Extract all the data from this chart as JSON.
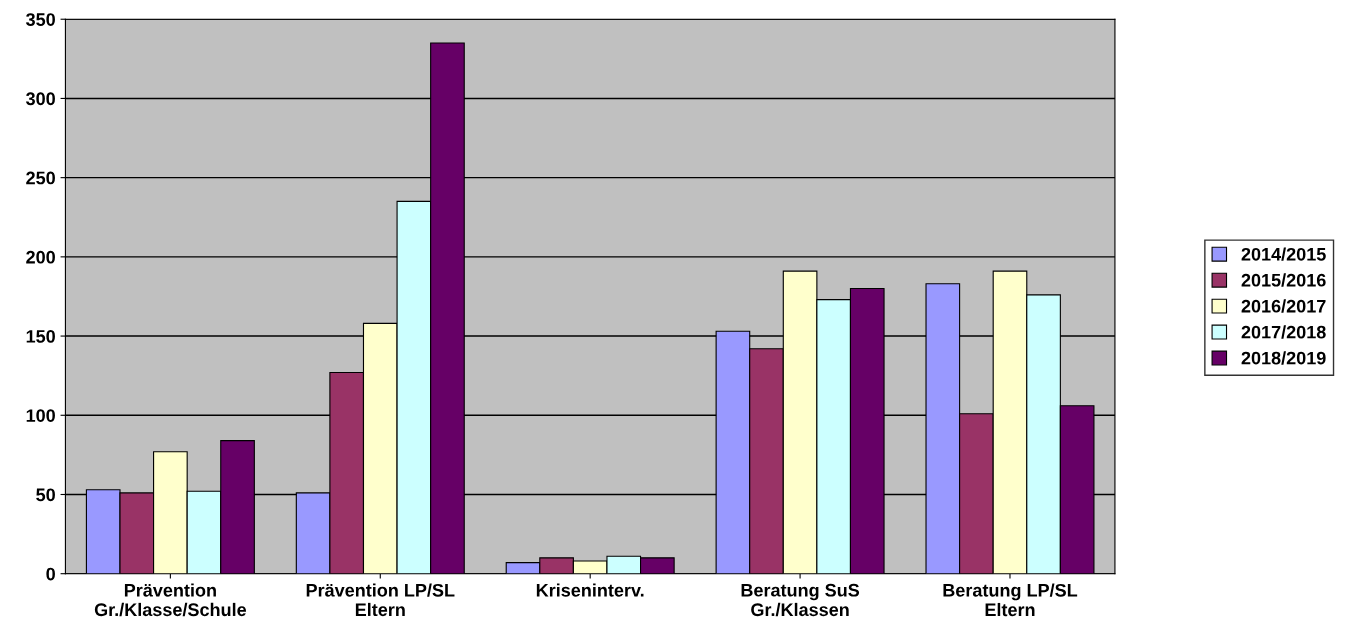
{
  "chart_data": {
    "type": "bar",
    "categories": [
      "Prävention\nGr./Klasse/Schule",
      "Prävention LP/SL\nEltern",
      "Kriseninterv.",
      "Beratung SuS\nGr./Klassen",
      "Beratung LP/SL\nEltern"
    ],
    "series": [
      {
        "name": "2014/2015",
        "color": "#9999ff",
        "values": [
          53,
          51,
          7,
          153,
          183
        ]
      },
      {
        "name": "2015/2016",
        "color": "#993366",
        "values": [
          51,
          127,
          10,
          142,
          101
        ]
      },
      {
        "name": "2016/2017",
        "color": "#ffffcc",
        "values": [
          77,
          158,
          8,
          191,
          191
        ]
      },
      {
        "name": "2017/2018",
        "color": "#ccffff",
        "values": [
          52,
          235,
          11,
          173,
          176
        ]
      },
      {
        "name": "2018/2019",
        "color": "#660066",
        "values": [
          84,
          335,
          10,
          180,
          106
        ]
      }
    ],
    "ylim": [
      0,
      350
    ],
    "yticks": [
      0,
      50,
      100,
      150,
      200,
      250,
      300,
      350
    ],
    "grid": "y",
    "legend": "right"
  }
}
